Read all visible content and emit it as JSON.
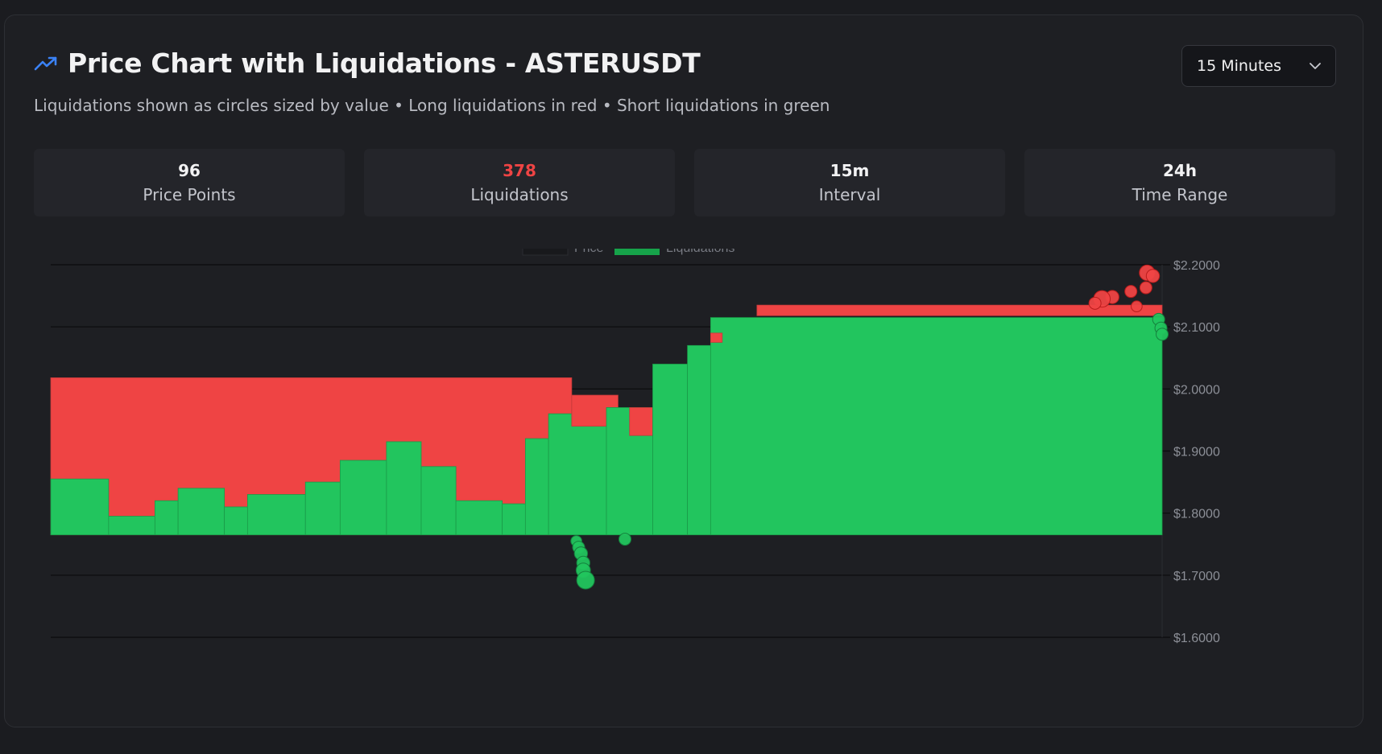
{
  "header": {
    "title": "Price Chart with Liquidations - ASTERUSDT",
    "subtitle": "Liquidations shown as circles sized by value • Long liquidations in red • Short liquidations in green",
    "icon": "trending-up-icon",
    "accent_color": "#3b82f6"
  },
  "interval_select": {
    "value": "15 Minutes"
  },
  "stats": [
    {
      "value": "96",
      "label": "Price Points"
    },
    {
      "value": "378",
      "label": "Liquidations",
      "color": "#ef4444"
    },
    {
      "value": "15m",
      "label": "Interval"
    },
    {
      "value": "24h",
      "label": "Time Range"
    }
  ],
  "chart_data": {
    "type": "area",
    "legend": {
      "placement": "top-center",
      "items": [
        "Price",
        "Liquidations"
      ]
    },
    "y_ticks": [
      "$2.2000",
      "$2.1000",
      "$2.0000",
      "$1.9000",
      "$1.8000",
      "$1.7000",
      "$1.6000"
    ],
    "ylim": [
      1.6,
      2.2
    ],
    "xlim": [
      0,
      96
    ],
    "grid": true,
    "colors": {
      "long": "#ef4444",
      "short": "#22c55e"
    },
    "baseline": 1.765,
    "series": [
      {
        "name": "Liquidations",
        "segments": [
          {
            "x0": 0,
            "x1": 45,
            "top": 2.018,
            "bottom": 1.765,
            "side": "long"
          },
          {
            "x0": 0,
            "x1": 5,
            "top": 1.855,
            "bottom": 1.765,
            "side": "short"
          },
          {
            "x0": 5,
            "x1": 9,
            "top": 1.795,
            "bottom": 1.765,
            "side": "short"
          },
          {
            "x0": 9,
            "x1": 11,
            "top": 1.82,
            "bottom": 1.765,
            "side": "short"
          },
          {
            "x0": 11,
            "x1": 15,
            "top": 1.84,
            "bottom": 1.765,
            "side": "short"
          },
          {
            "x0": 15,
            "x1": 17,
            "top": 1.81,
            "bottom": 1.765,
            "side": "short"
          },
          {
            "x0": 17,
            "x1": 22,
            "top": 1.83,
            "bottom": 1.765,
            "side": "short"
          },
          {
            "x0": 22,
            "x1": 25,
            "top": 1.85,
            "bottom": 1.765,
            "side": "short"
          },
          {
            "x0": 25,
            "x1": 29,
            "top": 1.885,
            "bottom": 1.765,
            "side": "short"
          },
          {
            "x0": 29,
            "x1": 32,
            "top": 1.915,
            "bottom": 1.765,
            "side": "short"
          },
          {
            "x0": 32,
            "x1": 35,
            "top": 1.875,
            "bottom": 1.765,
            "side": "short"
          },
          {
            "x0": 35,
            "x1": 39,
            "top": 1.82,
            "bottom": 1.765,
            "side": "short"
          },
          {
            "x0": 39,
            "x1": 41,
            "top": 1.815,
            "bottom": 1.765,
            "side": "short"
          },
          {
            "x0": 41,
            "x1": 43,
            "top": 1.92,
            "bottom": 1.765,
            "side": "short"
          },
          {
            "x0": 43,
            "x1": 48,
            "top": 1.96,
            "bottom": 1.765,
            "side": "short"
          },
          {
            "x0": 45,
            "x1": 49,
            "top": 1.99,
            "bottom": 1.94,
            "side": "long"
          },
          {
            "x0": 48,
            "x1": 52,
            "top": 1.97,
            "bottom": 1.765,
            "side": "short"
          },
          {
            "x0": 50,
            "x1": 53,
            "top": 1.97,
            "bottom": 1.925,
            "side": "long"
          },
          {
            "x0": 52,
            "x1": 55,
            "top": 2.04,
            "bottom": 1.765,
            "side": "short"
          },
          {
            "x0": 55,
            "x1": 57,
            "top": 2.07,
            "bottom": 1.765,
            "side": "short"
          },
          {
            "x0": 57,
            "x1": 96,
            "top": 2.115,
            "bottom": 1.765,
            "side": "short"
          },
          {
            "x0": 61,
            "x1": 96,
            "top": 2.135,
            "bottom": 2.118,
            "side": "long"
          },
          {
            "x0": 57,
            "x1": 58,
            "top": 2.09,
            "bottom": 2.075,
            "side": "long"
          }
        ]
      }
    ],
    "liquidation_points": [
      {
        "x": 45.4,
        "y": 1.755,
        "size": 0.4,
        "side": "short"
      },
      {
        "x": 45.6,
        "y": 1.745,
        "size": 0.5,
        "side": "short"
      },
      {
        "x": 45.8,
        "y": 1.735,
        "size": 0.6,
        "side": "short"
      },
      {
        "x": 46.0,
        "y": 1.72,
        "size": 0.6,
        "side": "short"
      },
      {
        "x": 46.0,
        "y": 1.708,
        "size": 0.7,
        "side": "short"
      },
      {
        "x": 46.2,
        "y": 1.692,
        "size": 1.0,
        "side": "short"
      },
      {
        "x": 49.6,
        "y": 1.758,
        "size": 0.5,
        "side": "short"
      },
      {
        "x": 94.7,
        "y": 2.187,
        "size": 0.8,
        "side": "long"
      },
      {
        "x": 95.2,
        "y": 2.182,
        "size": 0.6,
        "side": "long"
      },
      {
        "x": 94.6,
        "y": 2.163,
        "size": 0.5,
        "side": "long"
      },
      {
        "x": 93.3,
        "y": 2.157,
        "size": 0.5,
        "side": "long"
      },
      {
        "x": 91.7,
        "y": 2.148,
        "size": 0.6,
        "side": "long"
      },
      {
        "x": 90.8,
        "y": 2.145,
        "size": 0.9,
        "side": "long"
      },
      {
        "x": 90.2,
        "y": 2.138,
        "size": 0.5,
        "side": "long"
      },
      {
        "x": 93.8,
        "y": 2.133,
        "size": 0.4,
        "side": "long"
      },
      {
        "x": 95.7,
        "y": 2.112,
        "size": 0.5,
        "side": "short"
      },
      {
        "x": 95.9,
        "y": 2.098,
        "size": 0.5,
        "side": "short"
      },
      {
        "x": 96.0,
        "y": 2.088,
        "size": 0.5,
        "side": "short"
      }
    ]
  }
}
